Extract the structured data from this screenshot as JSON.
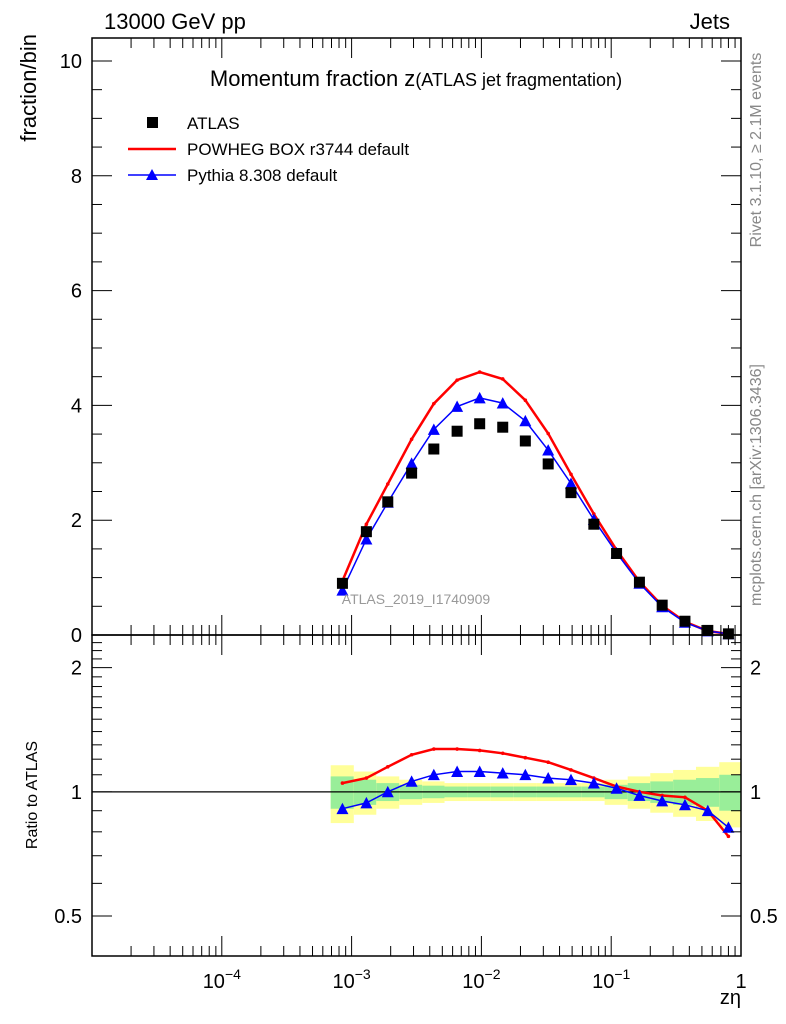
{
  "header": {
    "left": "13000 GeV pp",
    "right": "Jets"
  },
  "side_labels": {
    "rivet": "Rivet 3.1.10, ≥ 2.1M events",
    "mcplots": "mcplots.cern.ch [arXiv:1306.3436]"
  },
  "chart_data": [
    {
      "type": "scatter",
      "title_main": "Momentum fraction z",
      "title_sub": "(ATLAS jet fragmentation)",
      "ylabel": "fraction/bin",
      "watermark": "ATLAS_2019_I1740909",
      "xscale": "log",
      "xlim": [
        1e-05,
        1
      ],
      "ylim": [
        0,
        10.4
      ],
      "yticks": [
        0,
        2,
        4,
        6,
        8,
        10
      ],
      "yticklabels": [
        "0",
        "2",
        "4",
        "6",
        "8",
        "10"
      ],
      "legend": [
        {
          "name": "ATLAS",
          "style": "black-square"
        },
        {
          "name": "POWHEG BOX r3744 default",
          "style": "red-line"
        },
        {
          "name": "Pythia 8.308 default",
          "style": "blue-triangle"
        }
      ],
      "x": [
        0.00085,
        0.0013,
        0.0019,
        0.0029,
        0.0043,
        0.0065,
        0.0097,
        0.0146,
        0.0218,
        0.0327,
        0.049,
        0.0735,
        0.11,
        0.165,
        0.247,
        0.37,
        0.555,
        0.8
      ],
      "series": [
        {
          "name": "ATLAS",
          "color": "#000000",
          "values": [
            0.9,
            1.8,
            2.32,
            2.82,
            3.24,
            3.55,
            3.68,
            3.62,
            3.38,
            2.98,
            2.48,
            1.93,
            1.42,
            0.92,
            0.52,
            0.24,
            0.08,
            0.02
          ]
        },
        {
          "name": "POWHEG BOX r3744 default",
          "color": "#ff0000",
          "values": [
            0.94,
            1.93,
            2.63,
            3.41,
            4.03,
            4.44,
            4.58,
            4.46,
            4.09,
            3.51,
            2.8,
            2.11,
            1.48,
            0.93,
            0.51,
            0.23,
            0.07,
            0.02
          ]
        },
        {
          "name": "Pythia 8.308 default",
          "color": "#0000ff",
          "values": [
            0.78,
            1.67,
            2.31,
            2.99,
            3.58,
            3.98,
            4.13,
            4.04,
            3.73,
            3.22,
            2.64,
            2.01,
            1.43,
            0.9,
            0.49,
            0.22,
            0.07,
            0.02
          ]
        }
      ]
    },
    {
      "type": "line",
      "ylabel": "Ratio to ATLAS",
      "xlabel": "zη",
      "xscale": "log",
      "yscale": "log",
      "xlim": [
        1e-05,
        1
      ],
      "ylim": [
        0.4,
        2.4
      ],
      "yticks": [
        0.5,
        1,
        2
      ],
      "yticklabels": [
        "0.5",
        "1",
        "2"
      ],
      "xticks": [
        0.0001,
        0.001,
        0.01,
        0.1,
        1
      ],
      "xticklabels": [
        "10",
        "10",
        "10",
        "10",
        "1"
      ],
      "xtickexps": [
        "−4",
        "−3",
        "−2",
        "−1",
        ""
      ],
      "x": [
        0.00085,
        0.0013,
        0.0019,
        0.0029,
        0.0043,
        0.0065,
        0.0097,
        0.0146,
        0.0218,
        0.0327,
        0.049,
        0.0735,
        0.11,
        0.165,
        0.247,
        0.37,
        0.555,
        0.8
      ],
      "bin_edges": [
        0.00069,
        0.00104,
        0.00155,
        0.00233,
        0.0035,
        0.0052,
        0.0078,
        0.0117,
        0.0176,
        0.0264,
        0.0396,
        0.0594,
        0.089,
        0.134,
        0.2,
        0.3,
        0.45,
        0.68,
        1.0
      ],
      "band_inner": [
        0.09,
        0.07,
        0.05,
        0.04,
        0.035,
        0.03,
        0.03,
        0.03,
        0.03,
        0.03,
        0.03,
        0.03,
        0.04,
        0.05,
        0.06,
        0.07,
        0.08,
        0.1
      ],
      "band_outer": [
        0.16,
        0.12,
        0.09,
        0.07,
        0.06,
        0.05,
        0.05,
        0.05,
        0.05,
        0.05,
        0.05,
        0.05,
        0.07,
        0.09,
        0.11,
        0.13,
        0.15,
        0.18
      ],
      "series": [
        {
          "name": "POWHEG BOX r3744 default",
          "color": "#ff0000",
          "values": [
            1.05,
            1.08,
            1.15,
            1.23,
            1.27,
            1.27,
            1.26,
            1.24,
            1.21,
            1.18,
            1.13,
            1.08,
            1.03,
            1.0,
            0.98,
            0.97,
            0.9,
            0.78
          ]
        },
        {
          "name": "Pythia 8.308 default",
          "color": "#0000ff",
          "values": [
            0.91,
            0.94,
            1.0,
            1.06,
            1.1,
            1.12,
            1.12,
            1.11,
            1.1,
            1.08,
            1.07,
            1.05,
            1.02,
            0.98,
            0.95,
            0.93,
            0.9,
            0.82
          ]
        }
      ]
    }
  ]
}
